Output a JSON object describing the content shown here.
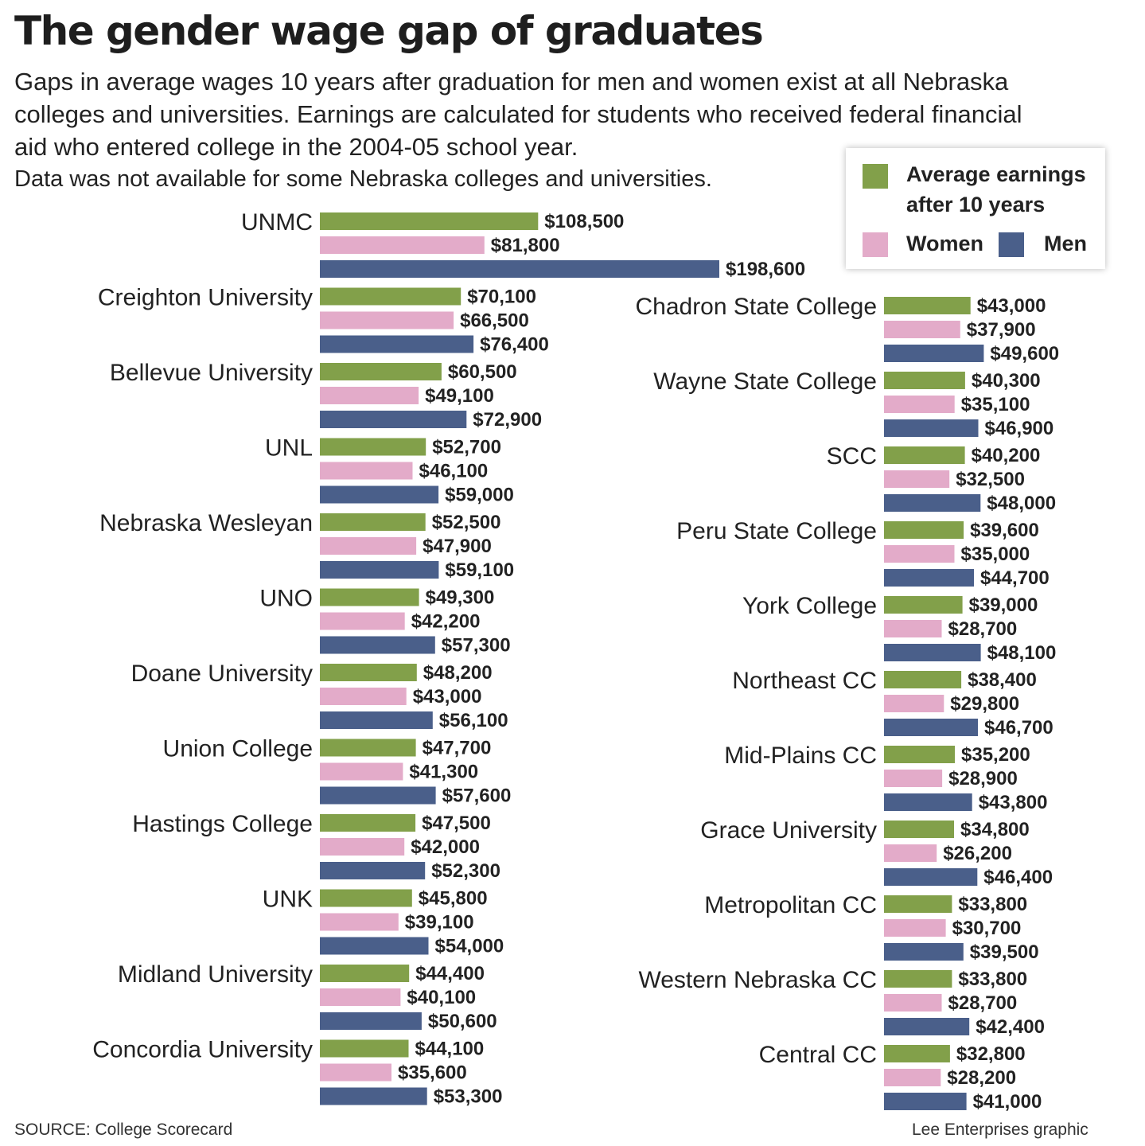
{
  "title": "The gender wage gap of graduates",
  "subtitle": [
    "Gaps in average wages 10 years after graduation for men and women exist at all Nebraska",
    "colleges and universities. Earnings are calculated for students who received federal financial",
    "aid who entered college in the 2004-05 school year.",
    "Data was not available for some Nebraska colleges and universities."
  ],
  "legend": {
    "average_line1": "Average earnings",
    "average_line2": "after 10 years",
    "women": "Women",
    "men": "Men"
  },
  "colors": {
    "average": "#82a04a",
    "women": "#e3abc9",
    "men": "#4a5f8a"
  },
  "footer": {
    "source": "SOURCE: College Scorecard",
    "credit": "Lee Enterprises graphic"
  },
  "chart_data": {
    "type": "bar",
    "orientation": "horizontal",
    "series_names": [
      "Average earnings after 10 years",
      "Women",
      "Men"
    ],
    "left_column": [
      {
        "name": "UNMC",
        "average": 108500,
        "women": 81800,
        "men": 198600,
        "labels": [
          "$108,500",
          "$81,800",
          "$198,600"
        ]
      },
      {
        "name": "Creighton University",
        "average": 70100,
        "women": 66500,
        "men": 76400,
        "labels": [
          "$70,100",
          "$66,500",
          "$76,400"
        ]
      },
      {
        "name": "Bellevue University",
        "average": 60500,
        "women": 49100,
        "men": 72900,
        "labels": [
          "$60,500",
          "$49,100",
          "$72,900"
        ]
      },
      {
        "name": "UNL",
        "average": 52700,
        "women": 46100,
        "men": 59000,
        "labels": [
          "$52,700",
          "$46,100",
          "$59,000"
        ]
      },
      {
        "name": "Nebraska Wesleyan",
        "average": 52500,
        "women": 47900,
        "men": 59100,
        "labels": [
          "$52,500",
          "$47,900",
          "$59,100"
        ]
      },
      {
        "name": "UNO",
        "average": 49300,
        "women": 42200,
        "men": 57300,
        "labels": [
          "$49,300",
          "$42,200",
          "$57,300"
        ]
      },
      {
        "name": "Doane University",
        "average": 48200,
        "women": 43000,
        "men": 56100,
        "labels": [
          "$48,200",
          "$43,000",
          "$56,100"
        ]
      },
      {
        "name": "Union College",
        "average": 47700,
        "women": 41300,
        "men": 57600,
        "labels": [
          "$47,700",
          "$41,300",
          "$57,600"
        ]
      },
      {
        "name": "Hastings College",
        "average": 47500,
        "women": 42000,
        "men": 52300,
        "labels": [
          "$47,500",
          "$42,000",
          "$52,300"
        ]
      },
      {
        "name": "UNK",
        "average": 45800,
        "women": 39100,
        "men": 54000,
        "labels": [
          "$45,800",
          "$39,100",
          "$54,000"
        ]
      },
      {
        "name": "Midland University",
        "average": 44400,
        "women": 40100,
        "men": 50600,
        "labels": [
          "$44,400",
          "$40,100",
          "$50,600"
        ]
      },
      {
        "name": "Concordia University",
        "average": 44100,
        "women": 35600,
        "men": 53300,
        "labels": [
          "$44,100",
          "$35,600",
          "$53,300"
        ]
      }
    ],
    "right_column": [
      {
        "name": "Chadron State College",
        "average": 43000,
        "women": 37900,
        "men": 49600,
        "labels": [
          "$43,000",
          "$37,900",
          "$49,600"
        ]
      },
      {
        "name": "Wayne State College",
        "average": 40300,
        "women": 35100,
        "men": 46900,
        "labels": [
          "$40,300",
          "$35,100",
          "$46,900"
        ]
      },
      {
        "name": "SCC",
        "average": 40200,
        "women": 32500,
        "men": 48000,
        "labels": [
          "$40,200",
          "$32,500",
          "$48,000"
        ]
      },
      {
        "name": "Peru State College",
        "average": 39600,
        "women": 35000,
        "men": 44700,
        "labels": [
          "$39,600",
          "$35,000",
          "$44,700"
        ]
      },
      {
        "name": "York College",
        "average": 39000,
        "women": 28700,
        "men": 48100,
        "labels": [
          "$39,000",
          "$28,700",
          "$48,100"
        ]
      },
      {
        "name": "Northeast CC",
        "average": 38400,
        "women": 29800,
        "men": 46700,
        "labels": [
          "$38,400",
          "$29,800",
          "$46,700"
        ]
      },
      {
        "name": "Mid-Plains CC",
        "average": 35200,
        "women": 28900,
        "men": 43800,
        "labels": [
          "$35,200",
          "$28,900",
          "$43,800"
        ]
      },
      {
        "name": "Grace University",
        "average": 34800,
        "women": 26200,
        "men": 46400,
        "labels": [
          "$34,800",
          "$26,200",
          "$46,400"
        ]
      },
      {
        "name": "Metropolitan CC",
        "average": 33800,
        "women": 30700,
        "men": 39500,
        "labels": [
          "$33,800",
          "$30,700",
          "$39,500"
        ]
      },
      {
        "name": "Western Nebraska CC",
        "average": 33800,
        "women": 28700,
        "men": 42400,
        "labels": [
          "$33,800",
          "$28,700",
          "$42,400"
        ]
      },
      {
        "name": "Central CC",
        "average": 32800,
        "women": 28200,
        "men": 41000,
        "labels": [
          "$32,800",
          "$28,200",
          "$41,000"
        ]
      }
    ]
  }
}
